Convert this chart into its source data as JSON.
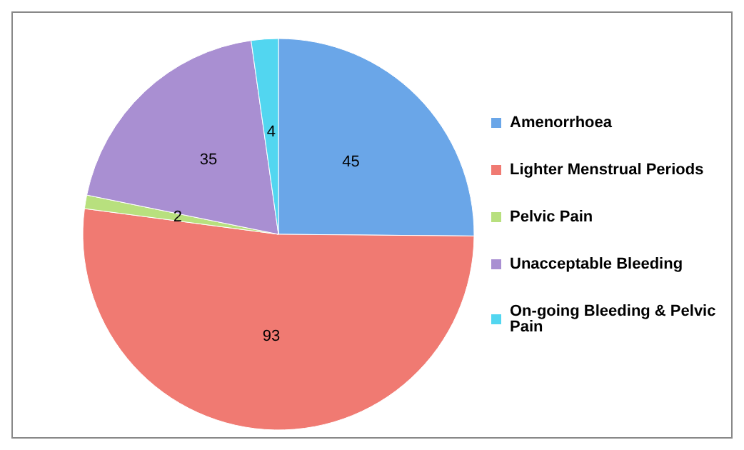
{
  "chart_data": {
    "type": "pie",
    "categories": [
      "Amenorrhoea",
      "Lighter Menstrual Periods",
      "Pelvic Pain",
      "Unacceptable Bleeding",
      "On-going Bleeding & Pelvic Pain"
    ],
    "values": [
      45,
      93,
      2,
      35,
      4
    ],
    "colors": [
      "#6aa6e8",
      "#f07a72",
      "#b8e07e",
      "#a98fd2",
      "#52d6f0"
    ],
    "data_labels": true,
    "legend": "right"
  }
}
